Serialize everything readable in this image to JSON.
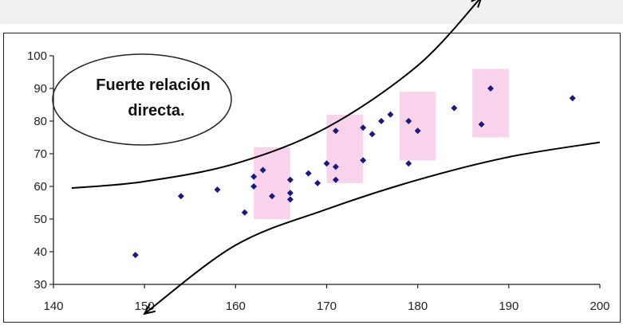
{
  "chart_data": {
    "type": "scatter",
    "title": "",
    "xlabel": "",
    "ylabel": "",
    "xlim": [
      140,
      200
    ],
    "ylim": [
      30,
      100
    ],
    "x_ticks": [
      140,
      150,
      160,
      170,
      180,
      190,
      200
    ],
    "y_ticks": [
      30,
      40,
      50,
      60,
      70,
      80,
      90,
      100
    ],
    "grid": false,
    "marker_color": "#1a1a7e",
    "highlight_color": "#f9d3ec",
    "series": [
      {
        "points": [
          [
            149,
            39
          ],
          [
            154,
            57
          ],
          [
            158,
            59
          ],
          [
            161,
            52
          ],
          [
            162,
            63
          ],
          [
            162,
            60
          ],
          [
            163,
            65
          ],
          [
            164,
            57
          ],
          [
            166,
            62
          ],
          [
            166,
            58
          ],
          [
            166,
            56
          ],
          [
            168,
            64
          ],
          [
            169,
            61
          ],
          [
            170,
            67
          ],
          [
            171,
            66
          ],
          [
            171,
            62
          ],
          [
            171,
            77
          ],
          [
            174,
            68
          ],
          [
            174,
            78
          ],
          [
            175,
            76
          ],
          [
            176,
            80
          ],
          [
            177,
            82
          ],
          [
            179,
            80
          ],
          [
            179,
            67
          ],
          [
            180,
            77
          ],
          [
            184,
            84
          ],
          [
            187,
            79
          ],
          [
            188,
            90
          ],
          [
            197,
            87
          ]
        ]
      }
    ],
    "highlight_bands": [
      {
        "x": [
          162,
          166
        ],
        "y": [
          50,
          72
        ]
      },
      {
        "x": [
          170,
          174
        ],
        "y": [
          61,
          82
        ]
      },
      {
        "x": [
          178,
          182
        ],
        "y": [
          68,
          89
        ]
      },
      {
        "x": [
          186,
          190
        ],
        "y": [
          75,
          96
        ]
      }
    ],
    "envelope_upper": [
      [
        142,
        59.5
      ],
      [
        150,
        61.5
      ],
      [
        160,
        67
      ],
      [
        170,
        78
      ],
      [
        180,
        97
      ],
      [
        187,
        118
      ]
    ],
    "envelope_lower": [
      [
        150,
        21
      ],
      [
        160,
        42
      ],
      [
        170,
        53
      ],
      [
        180,
        62
      ],
      [
        190,
        69
      ],
      [
        200,
        73.5
      ]
    ],
    "annotations": [
      {
        "lines": [
          "Fuerte relación",
          "directa."
        ]
      }
    ]
  }
}
